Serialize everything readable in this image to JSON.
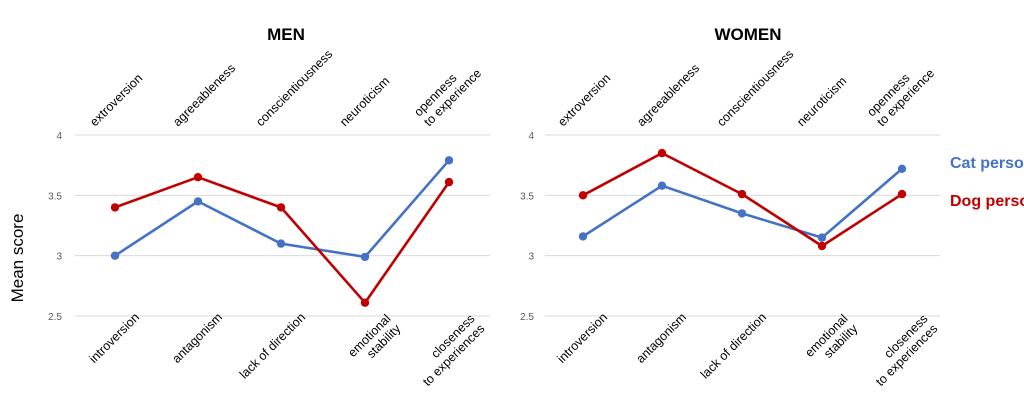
{
  "ylabel": "Mean score",
  "legend": {
    "position": "right",
    "items": [
      {
        "label": "Cat person",
        "color": "#4472C4"
      },
      {
        "label": "Dog person",
        "color": "#C00000"
      }
    ]
  },
  "chart_data": [
    {
      "type": "line",
      "title": "MEN",
      "ylim": [
        2.5,
        4.0
      ],
      "yticks": [
        "2.5",
        "3",
        "3.5",
        "4"
      ],
      "grid": true,
      "top_labels": [
        "extroversion",
        "agreeableness",
        "conscientiousness",
        "neuroticism",
        "openness\nto experience"
      ],
      "bottom_labels": [
        "introversion",
        "antagonism",
        "lack of direction",
        "emotional\nstability",
        "closeness\nto experiences"
      ],
      "series": [
        {
          "name": "Cat person",
          "color": "#4472C4",
          "values": [
            3.0,
            3.45,
            3.1,
            2.99,
            3.79
          ]
        },
        {
          "name": "Dog person",
          "color": "#C00000",
          "values": [
            3.4,
            3.65,
            3.4,
            2.61,
            3.61
          ]
        }
      ]
    },
    {
      "type": "line",
      "title": "WOMEN",
      "ylim": [
        2.5,
        4.0
      ],
      "yticks": [
        "2.5",
        "3",
        "3.5",
        "4"
      ],
      "grid": true,
      "top_labels": [
        "extroversion",
        "agreeableness",
        "conscientiousness",
        "neuroticism",
        "openness\nto experience"
      ],
      "bottom_labels": [
        "introversion",
        "antagonism",
        "lack of direction",
        "emotional\nstability",
        "closeness\nto experiences"
      ],
      "series": [
        {
          "name": "Cat person",
          "color": "#4472C4",
          "values": [
            3.16,
            3.58,
            3.35,
            3.15,
            3.72
          ]
        },
        {
          "name": "Dog person",
          "color": "#C00000",
          "values": [
            3.5,
            3.85,
            3.51,
            3.08,
            3.51
          ]
        }
      ]
    }
  ]
}
